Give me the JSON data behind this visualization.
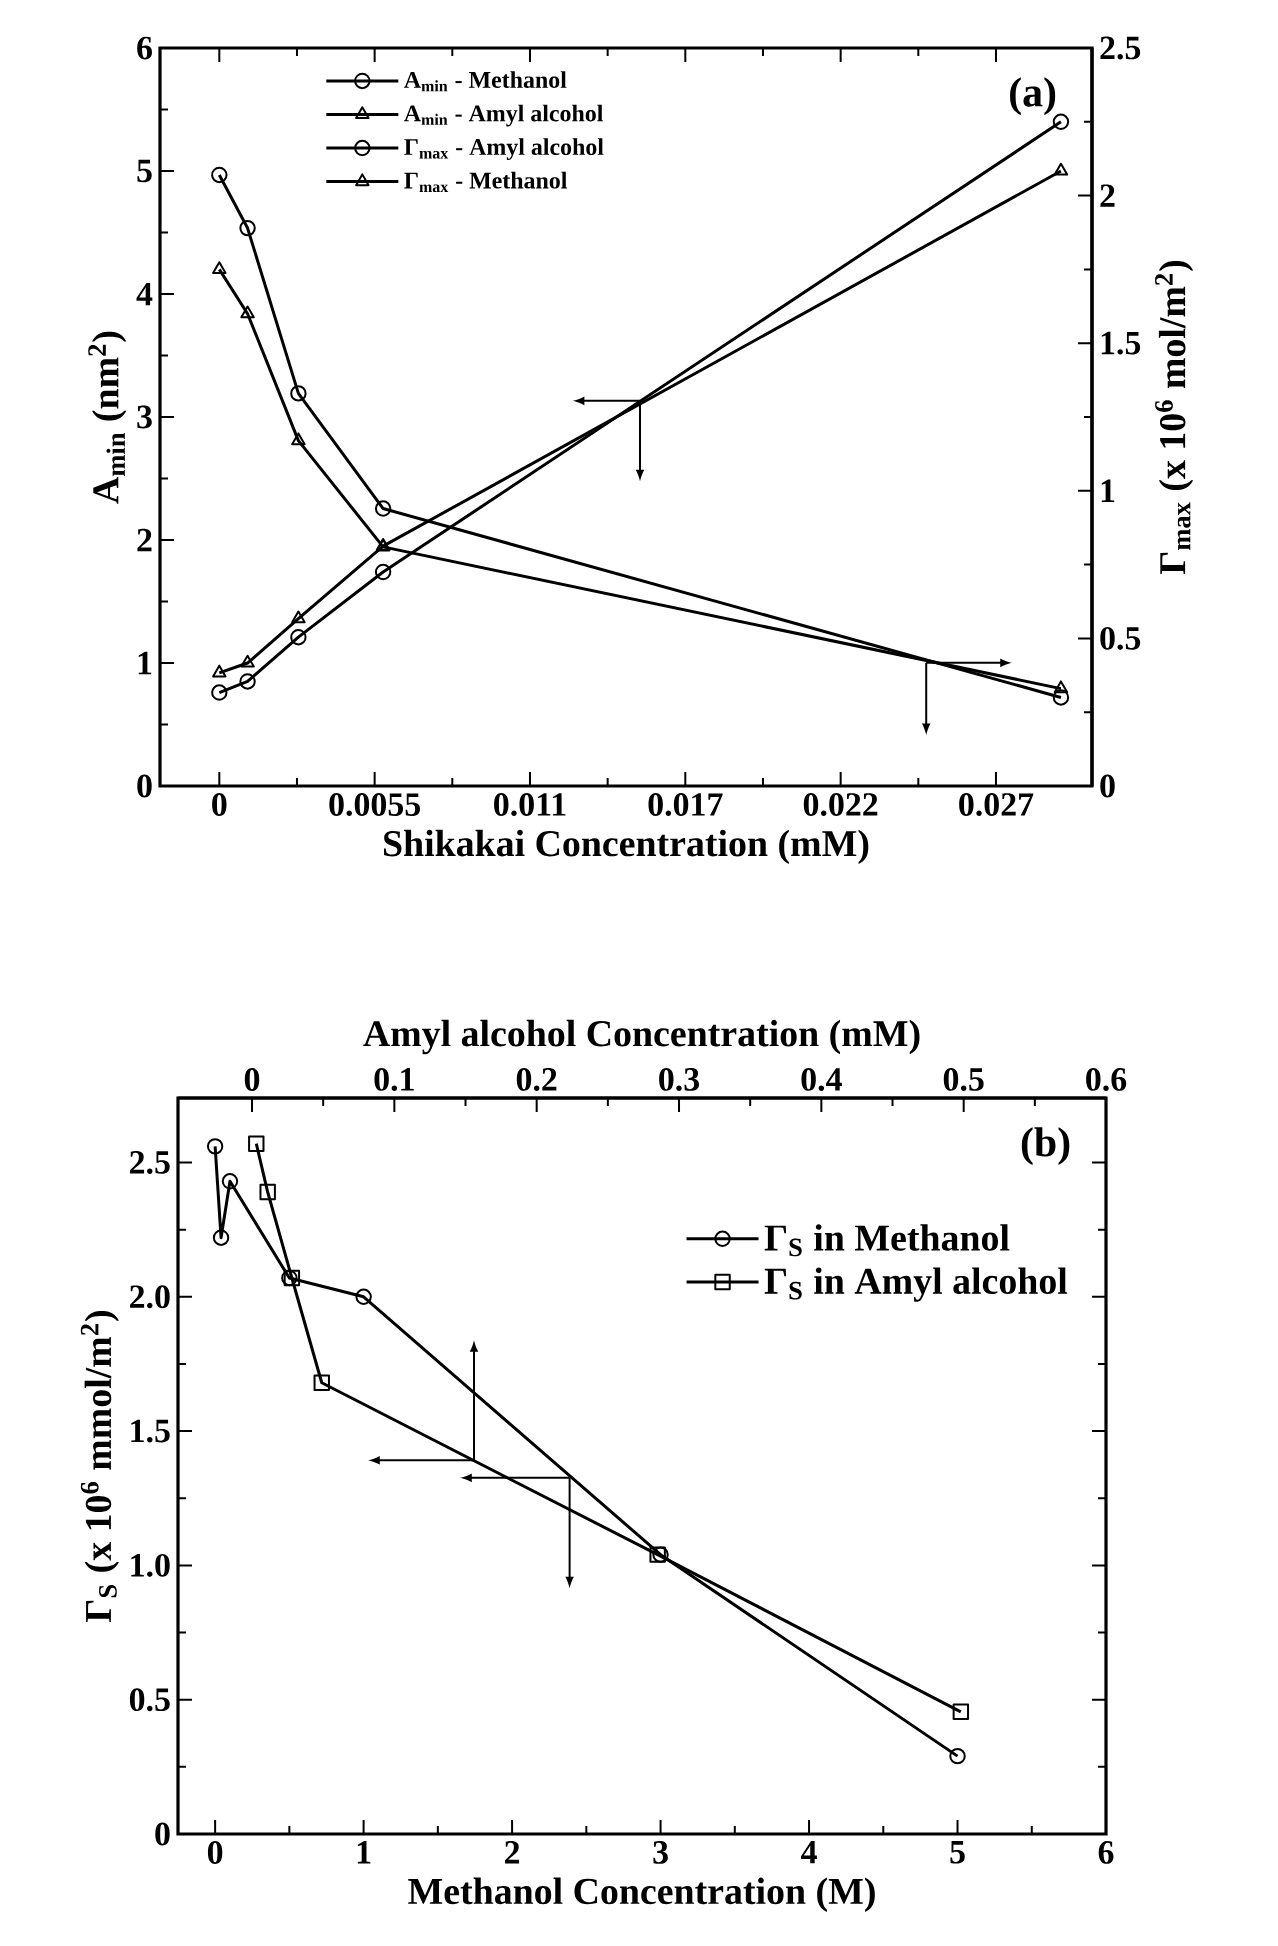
{
  "chart_data": [
    {
      "type": "line",
      "xlabel": "Shikakai Concentration (mM)",
      "ylabel": "A$_{min}$ (nm$^{2}$)",
      "y2label": "Γ$_{max}$ (x 10$^{6}$ mol/m$^{2}$)",
      "annotations": [
        "(a)"
      ],
      "x": [
        0,
        0.001,
        0.0028,
        0.0058,
        0.0298
      ],
      "xlim": [
        -0.0021,
        0.0309
      ],
      "xticks": [
        0,
        {
          "value": 0.0055,
          "label": "0.0055"
        },
        {
          "value": 0.011,
          "label": "0.011"
        },
        {
          "value": 0.0165,
          "label": "0.017"
        },
        {
          "value": 0.022,
          "label": "0.022"
        },
        {
          "value": 0.0275,
          "label": "0.027"
        }
      ],
      "ylim": [
        0,
        6
      ],
      "yticks": [
        0,
        1,
        2,
        3,
        4,
        5,
        6
      ],
      "y2lim": [
        0,
        2.5
      ],
      "y2ticks": [
        0,
        0.5,
        1,
        1.5,
        2,
        2.5
      ],
      "legend": "top left",
      "grid": false,
      "series": [
        {
          "name": "A$_{min}$ - Methanol",
          "color": "#000000",
          "marker": "circle",
          "values": [
            0.76,
            0.85,
            1.21,
            1.74,
            5.4
          ]
        },
        {
          "name": "A$_{min}$ - Amyl alcohol",
          "color": "#000000",
          "marker": "triangle",
          "values": [
            0.92,
            1.0,
            1.36,
            1.95,
            5.0
          ]
        },
        {
          "name": "Γ$_{max}$ - Amyl alcohol",
          "color": "#000000",
          "marker": "circle",
          "axis": "y2",
          "values": [
            2.07,
            1.89,
            1.33,
            0.94,
            0.3
          ]
        },
        {
          "name": "Γ$_{max}$ - Methanol",
          "color": "#000000",
          "marker": "triangle",
          "axis": "y2",
          "values": [
            1.75,
            1.6,
            1.17,
            0.81,
            0.33
          ]
        }
      ]
    },
    {
      "type": "line",
      "xlabel": "Methanol Concentration (M)",
      "x2label": "Amyl alcohol Concentration (mM)",
      "ylabel": "Γ$_{S}$ (x 10$^{6}$ mmol/m$^{2}$)",
      "annotations": [
        "(b)"
      ],
      "xlim": [
        -0.25,
        6
      ],
      "xticks": [
        0,
        1,
        2,
        3,
        4,
        5,
        6
      ],
      "x2lim": [
        -0.052,
        0.6
      ],
      "x2ticks": [
        0,
        0.1,
        0.2,
        0.3,
        0.4,
        0.5,
        0.6
      ],
      "ylim": [
        0,
        2.74
      ],
      "yticks": [
        0,
        {
          "value": 0.5,
          "label": "0.5"
        },
        {
          "value": 1,
          "label": "1.0"
        },
        {
          "value": 1.5,
          "label": "1.5"
        },
        {
          "value": 2,
          "label": "2.0"
        },
        {
          "value": 2.5,
          "label": "2.5"
        }
      ],
      "legend": "top right",
      "grid": false,
      "series": [
        {
          "name": "Γ$_{S}$ in Methanol",
          "color": "#000000",
          "marker": "circle",
          "x": [
            0,
            0.04,
            0.1,
            0.5,
            1,
            3,
            5
          ],
          "values": [
            2.56,
            2.22,
            2.43,
            2.07,
            2.0,
            1.04,
            0.29
          ]
        },
        {
          "name": "Γ$_{S}$ in Amyl alcohol",
          "color": "#000000",
          "marker": "square",
          "axis": "x2",
          "x": [
            0.003,
            0.011,
            0.028,
            0.049,
            0.285,
            0.498
          ],
          "values": [
            2.57,
            2.39,
            2.07,
            1.68,
            1.04,
            0.455
          ]
        }
      ]
    }
  ]
}
